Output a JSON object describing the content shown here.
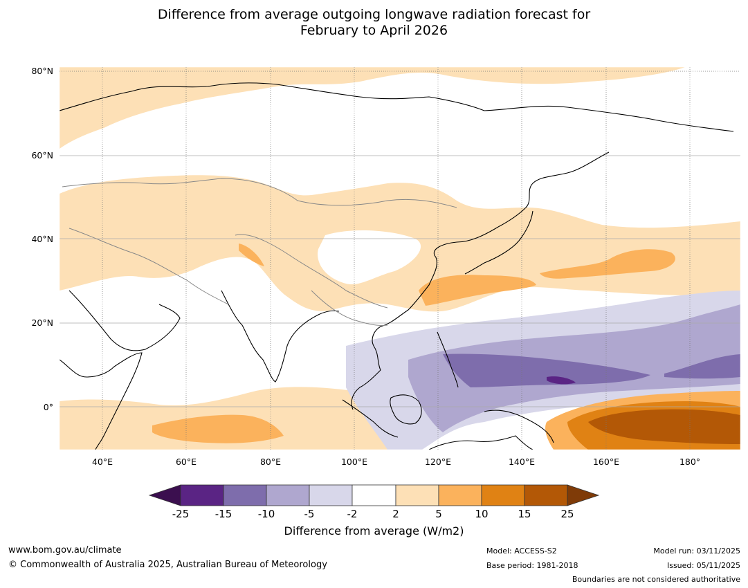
{
  "title": {
    "line1": "Difference from average outgoing longwave radiation forecast for",
    "line2": "February to April 2026"
  },
  "map": {
    "lat_labels": [
      "80°N",
      "60°N",
      "40°N",
      "20°N",
      "0°"
    ],
    "lon_labels": [
      "40°E",
      "60°E",
      "80°E",
      "100°E",
      "120°E",
      "140°E",
      "160°E",
      "180°"
    ],
    "lat_range": [
      -10,
      80
    ],
    "lon_range": [
      30,
      192
    ]
  },
  "colorbar": {
    "title": "Difference from average (W/m2)",
    "ticks": [
      "-25",
      "-15",
      "-10",
      "-5",
      "-2",
      "2",
      "5",
      "10",
      "15",
      "25"
    ],
    "colors": [
      "#3b0f4f",
      "#5a2484",
      "#7e6dac",
      "#afa7cf",
      "#d8d7ea",
      "#ffffff",
      "#fde0b6",
      "#fbb25c",
      "#e08214",
      "#b35806",
      "#7f3b08"
    ]
  },
  "footer": {
    "url": "www.bom.gov.au/climate",
    "copyright": "© Commonwealth of Australia 2025, Australian Bureau of Meteorology",
    "model": "Model: ACCESS-S2",
    "base_period": "Base period: 1981-2018",
    "model_run": "Model run: 03/11/2025",
    "issued": "Issued: 05/11/2025",
    "disclaimer": "Boundaries are not considered authoritative"
  }
}
